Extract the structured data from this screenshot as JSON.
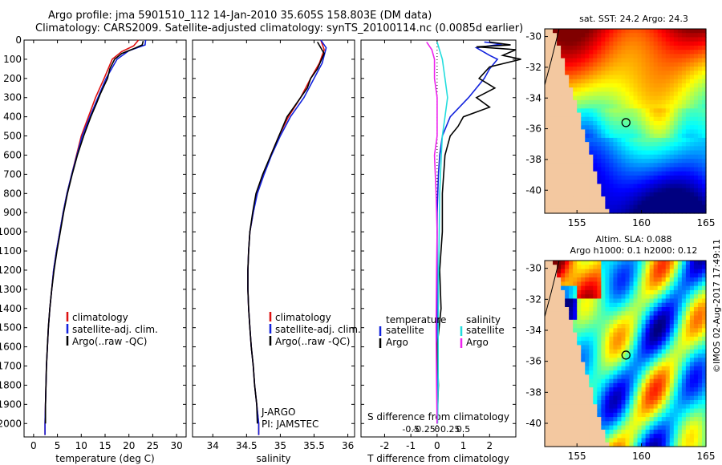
{
  "header": {
    "line1": "Argo profile: jma 5901510_112 14-Jan-2010 35.605S 158.803E (DM data)",
    "line2": "Climatology: CARS2009. Satellite-adjusted climatology: synTS_20100114.nc (0.0085d earlier)"
  },
  "colors": {
    "climatology": "#dd1111",
    "satellite": "#1122dd",
    "argo": "#000000",
    "sat_salinity": "#22dddd",
    "argo_salinity": "#ee22ee"
  },
  "chart_data": [
    {
      "type": "line",
      "name": "temperature",
      "xlabel": "temperature (deg C)",
      "ylabel": "",
      "xlim": [
        -2,
        32
      ],
      "ylim": [
        2070,
        0
      ],
      "xticks": [
        0,
        5,
        10,
        15,
        20,
        25,
        30
      ],
      "yticks": [
        0,
        100,
        200,
        300,
        400,
        500,
        600,
        700,
        800,
        900,
        1000,
        1100,
        1200,
        1300,
        1400,
        1500,
        1600,
        1700,
        1800,
        1900,
        2000
      ],
      "legend": [
        "climatology",
        "satellite-adj. clim.",
        "Argo(..raw -QC)"
      ],
      "series": [
        {
          "name": "climatology",
          "color": "#dd1111",
          "points": [
            [
              22.0,
              0
            ],
            [
              21.0,
              30
            ],
            [
              18.5,
              60
            ],
            [
              16.5,
              100
            ],
            [
              14.8,
              200
            ],
            [
              13.0,
              300
            ],
            [
              11.5,
              400
            ],
            [
              10.0,
              500
            ],
            [
              9.0,
              600
            ],
            [
              8.0,
              700
            ],
            [
              7.0,
              800
            ],
            [
              6.2,
              900
            ],
            [
              5.5,
              1000
            ],
            [
              4.8,
              1100
            ],
            [
              4.2,
              1200
            ],
            [
              3.8,
              1300
            ],
            [
              3.4,
              1400
            ],
            [
              3.1,
              1500
            ],
            [
              2.9,
              1600
            ],
            [
              2.7,
              1700
            ],
            [
              2.6,
              1800
            ],
            [
              2.5,
              1900
            ],
            [
              2.4,
              2000
            ],
            [
              2.4,
              2060
            ]
          ]
        },
        {
          "name": "satellite-adj. clim.",
          "color": "#1122dd",
          "points": [
            [
              23.5,
              0
            ],
            [
              23.4,
              25
            ],
            [
              20.0,
              55
            ],
            [
              17.5,
              100
            ],
            [
              15.2,
              200
            ],
            [
              13.5,
              300
            ],
            [
              11.8,
              400
            ],
            [
              10.2,
              500
            ],
            [
              9.1,
              600
            ],
            [
              8.0,
              700
            ],
            [
              7.0,
              800
            ],
            [
              6.2,
              900
            ],
            [
              5.5,
              1000
            ],
            [
              4.8,
              1100
            ],
            [
              4.2,
              1200
            ],
            [
              3.8,
              1300
            ],
            [
              3.4,
              1400
            ],
            [
              3.1,
              1500
            ],
            [
              2.9,
              1600
            ],
            [
              2.7,
              1700
            ],
            [
              2.6,
              1800
            ],
            [
              2.5,
              1900
            ],
            [
              2.4,
              2000
            ],
            [
              2.4,
              2060
            ]
          ]
        },
        {
          "name": "Argo(..raw -QC)",
          "color": "#000000",
          "points": [
            [
              23.0,
              5
            ],
            [
              22.8,
              25
            ],
            [
              21.0,
              45
            ],
            [
              18.5,
              70
            ],
            [
              17.0,
              100
            ],
            [
              16.0,
              150
            ],
            [
              15.5,
              200
            ],
            [
              14.0,
              280
            ],
            [
              13.2,
              330
            ],
            [
              12.0,
              400
            ],
            [
              10.5,
              500
            ],
            [
              9.2,
              600
            ],
            [
              8.1,
              700
            ],
            [
              7.1,
              800
            ],
            [
              6.3,
              900
            ],
            [
              5.6,
              1000
            ],
            [
              4.9,
              1100
            ],
            [
              4.3,
              1200
            ],
            [
              3.8,
              1300
            ],
            [
              3.4,
              1400
            ],
            [
              3.1,
              1500
            ],
            [
              2.9,
              1600
            ],
            [
              2.7,
              1700
            ],
            [
              2.6,
              1800
            ],
            [
              2.5,
              1900
            ],
            [
              2.5,
              2000
            ]
          ]
        }
      ]
    },
    {
      "type": "line",
      "name": "salinity",
      "xlabel": "salinity",
      "xlim": [
        33.7,
        36.1
      ],
      "ylim": [
        2070,
        0
      ],
      "xticks": [
        34,
        34.5,
        35,
        35.5,
        36
      ],
      "legend": [
        "climatology",
        "satellite-adj. clim.",
        "Argo(..raw -QC)"
      ],
      "annotation": [
        "J-ARGO",
        "PI: JAMSTEC"
      ],
      "series": [
        {
          "name": "climatology",
          "color": "#dd1111",
          "points": [
            [
              35.6,
              0
            ],
            [
              35.65,
              50
            ],
            [
              35.58,
              120
            ],
            [
              35.45,
              200
            ],
            [
              35.3,
              300
            ],
            [
              35.12,
              400
            ],
            [
              34.98,
              500
            ],
            [
              34.86,
              600
            ],
            [
              34.75,
              700
            ],
            [
              34.65,
              800
            ],
            [
              34.6,
              900
            ],
            [
              34.55,
              1000
            ],
            [
              34.53,
              1100
            ],
            [
              34.52,
              1200
            ],
            [
              34.52,
              1300
            ],
            [
              34.53,
              1400
            ],
            [
              34.55,
              1500
            ],
            [
              34.57,
              1600
            ],
            [
              34.6,
              1700
            ],
            [
              34.62,
              1800
            ],
            [
              34.65,
              1900
            ],
            [
              34.68,
              2000
            ],
            [
              34.68,
              2060
            ]
          ]
        },
        {
          "name": "satellite-adj. clim.",
          "color": "#1122dd",
          "points": [
            [
              35.6,
              0
            ],
            [
              35.68,
              40
            ],
            [
              35.62,
              120
            ],
            [
              35.5,
              200
            ],
            [
              35.35,
              300
            ],
            [
              35.15,
              400
            ],
            [
              35.0,
              500
            ],
            [
              34.87,
              600
            ],
            [
              34.76,
              700
            ],
            [
              34.66,
              800
            ],
            [
              34.6,
              900
            ],
            [
              34.55,
              1000
            ],
            [
              34.53,
              1100
            ],
            [
              34.52,
              1200
            ],
            [
              34.52,
              1300
            ],
            [
              34.53,
              1400
            ],
            [
              34.55,
              1500
            ],
            [
              34.57,
              1600
            ],
            [
              34.6,
              1700
            ],
            [
              34.62,
              1800
            ],
            [
              34.65,
              1900
            ],
            [
              34.68,
              2000
            ],
            [
              34.68,
              2060
            ]
          ]
        },
        {
          "name": "Argo(..raw -QC)",
          "color": "#000000",
          "points": [
            [
              35.55,
              10
            ],
            [
              35.6,
              40
            ],
            [
              35.65,
              70
            ],
            [
              35.6,
              110
            ],
            [
              35.55,
              150
            ],
            [
              35.45,
              200
            ],
            [
              35.4,
              250
            ],
            [
              35.3,
              300
            ],
            [
              35.2,
              350
            ],
            [
              35.1,
              400
            ],
            [
              34.98,
              500
            ],
            [
              34.86,
              600
            ],
            [
              34.74,
              700
            ],
            [
              34.64,
              800
            ],
            [
              34.59,
              900
            ],
            [
              34.55,
              1000
            ],
            [
              34.53,
              1100
            ],
            [
              34.52,
              1200
            ],
            [
              34.52,
              1300
            ],
            [
              34.53,
              1400
            ],
            [
              34.55,
              1500
            ],
            [
              34.57,
              1600
            ],
            [
              34.6,
              1700
            ],
            [
              34.62,
              1800
            ],
            [
              34.65,
              1900
            ],
            [
              34.66,
              2000
            ]
          ]
        }
      ]
    },
    {
      "type": "line",
      "name": "difference",
      "xlabel": "T difference from climatology",
      "xlabel_top": "S difference from climatology",
      "xlim": [
        -2.9,
        3.0
      ],
      "ylim": [
        2070,
        0
      ],
      "xticks": [
        -2,
        -1,
        0,
        1,
        2
      ],
      "xticklabels": [
        "-2",
        "-1",
        "0",
        "1",
        "2"
      ],
      "s_ticks": [
        -0.5,
        -0.25,
        0,
        0.25,
        0.5
      ],
      "s_ticklabels": [
        "-0.5",
        "-0.25",
        "0",
        "0.25",
        "0.5"
      ],
      "legend_temperature": {
        "title": "temperature",
        "items": [
          "satellite",
          "Argo"
        ]
      },
      "legend_salinity": {
        "title": "salinity",
        "items": [
          "satellite",
          "Argo"
        ]
      },
      "series": [
        {
          "name": "temperature satellite",
          "color": "#1122dd",
          "points": [
            [
              1.8,
              10
            ],
            [
              2.5,
              20
            ],
            [
              1.5,
              40
            ],
            [
              2.0,
              80
            ],
            [
              2.3,
              100
            ],
            [
              2.0,
              150
            ],
            [
              1.8,
              200
            ],
            [
              1.2,
              300
            ],
            [
              0.5,
              400
            ],
            [
              0.2,
              500
            ],
            [
              0.1,
              600
            ],
            [
              0.05,
              700
            ],
            [
              0.0,
              900
            ],
            [
              0.0,
              1200
            ],
            [
              0.0,
              1600
            ],
            [
              0.0,
              2000
            ]
          ]
        },
        {
          "name": "temperature Argo",
          "color": "#000000",
          "points": [
            [
              2.0,
              10
            ],
            [
              2.8,
              25
            ],
            [
              1.5,
              35
            ],
            [
              3.0,
              50
            ],
            [
              2.5,
              80
            ],
            [
              3.2,
              100
            ],
            [
              2.0,
              140
            ],
            [
              1.6,
              200
            ],
            [
              2.2,
              250
            ],
            [
              1.5,
              300
            ],
            [
              2.0,
              350
            ],
            [
              1.0,
              400
            ],
            [
              0.8,
              450
            ],
            [
              0.5,
              500
            ],
            [
              0.3,
              600
            ],
            [
              0.2,
              800
            ],
            [
              0.2,
              1000
            ],
            [
              0.1,
              1200
            ],
            [
              0.15,
              1400
            ],
            [
              0.0,
              1600
            ],
            [
              0.05,
              1800
            ],
            [
              0.0,
              2000
            ]
          ]
        },
        {
          "name": "salinity satellite",
          "color": "#22dddd",
          "points": [
            [
              0.0,
              10
            ],
            [
              0.1,
              100
            ],
            [
              0.15,
              200
            ],
            [
              0.2,
              300
            ],
            [
              0.15,
              400
            ],
            [
              0.1,
              500
            ],
            [
              0.08,
              600
            ],
            [
              0.05,
              800
            ],
            [
              0.04,
              1000
            ],
            [
              0.03,
              1200
            ],
            [
              0.02,
              1500
            ],
            [
              0.02,
              1800
            ],
            [
              0.01,
              2000
            ]
          ]
        },
        {
          "name": "salinity Argo",
          "color": "#ee22ee",
          "points": [
            [
              -0.2,
              10
            ],
            [
              -0.1,
              50
            ],
            [
              -0.05,
              100
            ],
            [
              -0.05,
              200
            ],
            [
              0.0,
              300
            ],
            [
              0.0,
              400
            ],
            [
              0.0,
              500
            ],
            [
              -0.05,
              600
            ],
            [
              -0.02,
              800
            ],
            [
              0.0,
              1000
            ],
            [
              -0.01,
              1200
            ],
            [
              -0.02,
              1500
            ],
            [
              -0.01,
              1800
            ],
            [
              0.0,
              2000
            ]
          ]
        }
      ]
    },
    {
      "type": "heatmap",
      "name": "sst-map",
      "title": "sat. SST: 24.2  Argo: 24.3",
      "xlim": [
        152.5,
        165
      ],
      "ylim": [
        -41.5,
        -29.5
      ],
      "xticks": [
        155,
        160,
        165
      ],
      "yticks": [
        -30,
        -32,
        -34,
        -36,
        -38,
        -40
      ],
      "marker": {
        "lon": 158.8,
        "lat": -35.6
      }
    },
    {
      "type": "heatmap",
      "name": "sla-map",
      "title": "Altim. SLA: 0.088",
      "subtitle": "Argo h1000: 0.1 h2000: 0.12",
      "xlim": [
        152.5,
        165
      ],
      "ylim": [
        -41.5,
        -29.5
      ],
      "xticks": [
        155,
        160,
        165
      ],
      "yticks": [
        -30,
        -32,
        -34,
        -36,
        -38,
        -40
      ],
      "marker": {
        "lon": 158.8,
        "lat": -35.6
      }
    }
  ],
  "credit": "©IMOS 02-Aug-2017 17:49:11"
}
